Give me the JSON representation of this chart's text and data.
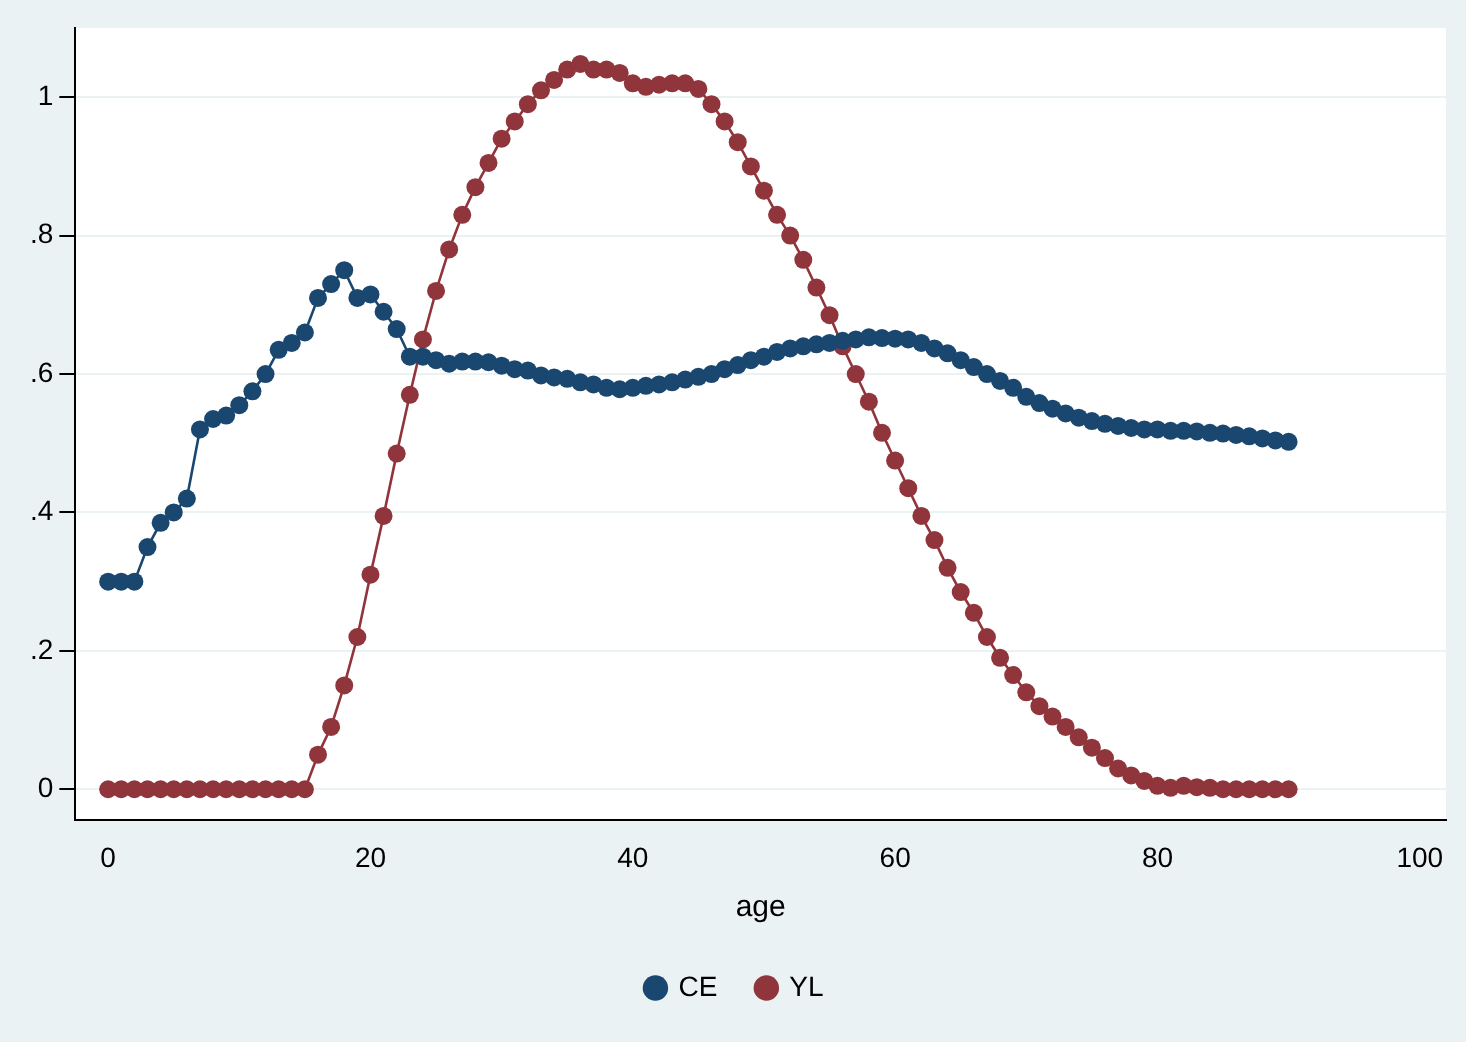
{
  "chart_data": {
    "type": "line",
    "xlabel": "age",
    "x": [
      0,
      1,
      2,
      3,
      4,
      5,
      6,
      7,
      8,
      9,
      10,
      11,
      12,
      13,
      14,
      15,
      16,
      17,
      18,
      19,
      20,
      21,
      22,
      23,
      24,
      25,
      26,
      27,
      28,
      29,
      30,
      31,
      32,
      33,
      34,
      35,
      36,
      37,
      38,
      39,
      40,
      41,
      42,
      43,
      44,
      45,
      46,
      47,
      48,
      49,
      50,
      51,
      52,
      53,
      54,
      55,
      56,
      57,
      58,
      59,
      60,
      61,
      62,
      63,
      64,
      65,
      66,
      67,
      68,
      69,
      70,
      71,
      72,
      73,
      74,
      75,
      76,
      77,
      78,
      79,
      80,
      81,
      82,
      83,
      84,
      85,
      86,
      87,
      88,
      89,
      90
    ],
    "series": [
      {
        "name": "CE",
        "color": "#1a476f",
        "values": [
          0.3,
          0.3,
          0.3,
          0.35,
          0.385,
          0.4,
          0.42,
          0.52,
          0.535,
          0.54,
          0.555,
          0.575,
          0.6,
          0.635,
          0.645,
          0.66,
          0.71,
          0.73,
          0.75,
          0.71,
          0.715,
          0.69,
          0.665,
          0.625,
          0.625,
          0.62,
          0.615,
          0.618,
          0.618,
          0.617,
          0.612,
          0.607,
          0.605,
          0.598,
          0.595,
          0.593,
          0.588,
          0.585,
          0.58,
          0.578,
          0.58,
          0.583,
          0.585,
          0.588,
          0.592,
          0.596,
          0.6,
          0.607,
          0.613,
          0.62,
          0.625,
          0.632,
          0.637,
          0.64,
          0.643,
          0.645,
          0.648,
          0.65,
          0.653,
          0.652,
          0.651,
          0.65,
          0.645,
          0.637,
          0.63,
          0.62,
          0.61,
          0.6,
          0.59,
          0.58,
          0.567,
          0.558,
          0.55,
          0.543,
          0.537,
          0.532,
          0.528,
          0.525,
          0.522,
          0.52,
          0.52,
          0.518,
          0.518,
          0.517,
          0.515,
          0.514,
          0.512,
          0.51,
          0.507,
          0.504,
          0.502
        ]
      },
      {
        "name": "YL",
        "color": "#90353b",
        "values": [
          0,
          0,
          0,
          0,
          0,
          0,
          0,
          0,
          0,
          0,
          0,
          0,
          0,
          0,
          0,
          0,
          0.05,
          0.09,
          0.15,
          0.22,
          0.31,
          0.395,
          0.485,
          0.57,
          0.65,
          0.72,
          0.78,
          0.83,
          0.87,
          0.905,
          0.94,
          0.965,
          0.99,
          1.01,
          1.025,
          1.04,
          1.048,
          1.04,
          1.04,
          1.035,
          1.02,
          1.015,
          1.018,
          1.02,
          1.02,
          1.012,
          0.99,
          0.965,
          0.935,
          0.9,
          0.865,
          0.83,
          0.8,
          0.765,
          0.725,
          0.685,
          0.64,
          0.6,
          0.56,
          0.515,
          0.475,
          0.435,
          0.395,
          0.36,
          0.32,
          0.285,
          0.255,
          0.22,
          0.19,
          0.165,
          0.14,
          0.12,
          0.105,
          0.09,
          0.075,
          0.06,
          0.045,
          0.03,
          0.02,
          0.012,
          0.005,
          0.002,
          0.005,
          0.003,
          0.002,
          0,
          0,
          0,
          0,
          0,
          0
        ]
      }
    ],
    "xlim": [
      -2.5,
      102
    ],
    "xticks": [
      0,
      20,
      40,
      60,
      80,
      100
    ],
    "ylim": [
      -0.045,
      1.1
    ],
    "yticks": [
      0,
      {
        "value": 0.2,
        "label": ".2"
      },
      {
        "value": 0.4,
        "label": ".4"
      },
      {
        "value": 0.6,
        "label": ".6"
      },
      {
        "value": 0.8,
        "label": ".8"
      },
      1
    ],
    "grid": "y",
    "legend": "bottom",
    "marker": "circle",
    "line_style": "solid"
  }
}
